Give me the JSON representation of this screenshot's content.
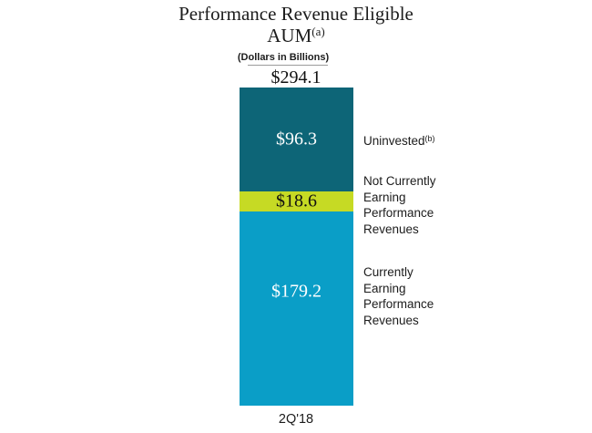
{
  "page": {
    "background": "#ffffff"
  },
  "chart_data": {
    "type": "bar",
    "stacked": true,
    "title": "Performance Revenue Eligible AUM",
    "title_line1": "Performance Revenue Eligible",
    "title_line2": "AUM",
    "title_superscript": "(a)",
    "subtitle": "(Dollars in Billions)",
    "categories": [
      "2Q'18"
    ],
    "total": {
      "label": "$294.1",
      "value": 294.1
    },
    "ylim": [
      0,
      294.1
    ],
    "grid": false,
    "legend_position": "right-annotations",
    "segments": [
      {
        "name": "Uninvested",
        "name_superscript": "(b)",
        "value": 96.3,
        "label": "$96.3",
        "color": "#0d6577",
        "label_color": "#ffffff"
      },
      {
        "name": "Not Currently Earning Performance Revenues",
        "value": 18.6,
        "label": "$18.6",
        "color": "#c6da24",
        "label_color": "#111111"
      },
      {
        "name": "Currently Earning Performance Revenues",
        "value": 179.2,
        "label": "$179.2",
        "color": "#0a9ec7",
        "label_color": "#ffffff"
      }
    ],
    "annotations": [
      {
        "text": "Uninvested",
        "superscript": "(b)"
      },
      {
        "lines": [
          "Not Currently",
          "Earning",
          "Performance",
          "Revenues"
        ]
      },
      {
        "lines": [
          "Currently",
          "Earning",
          "Performance",
          "Revenues"
        ]
      }
    ]
  }
}
